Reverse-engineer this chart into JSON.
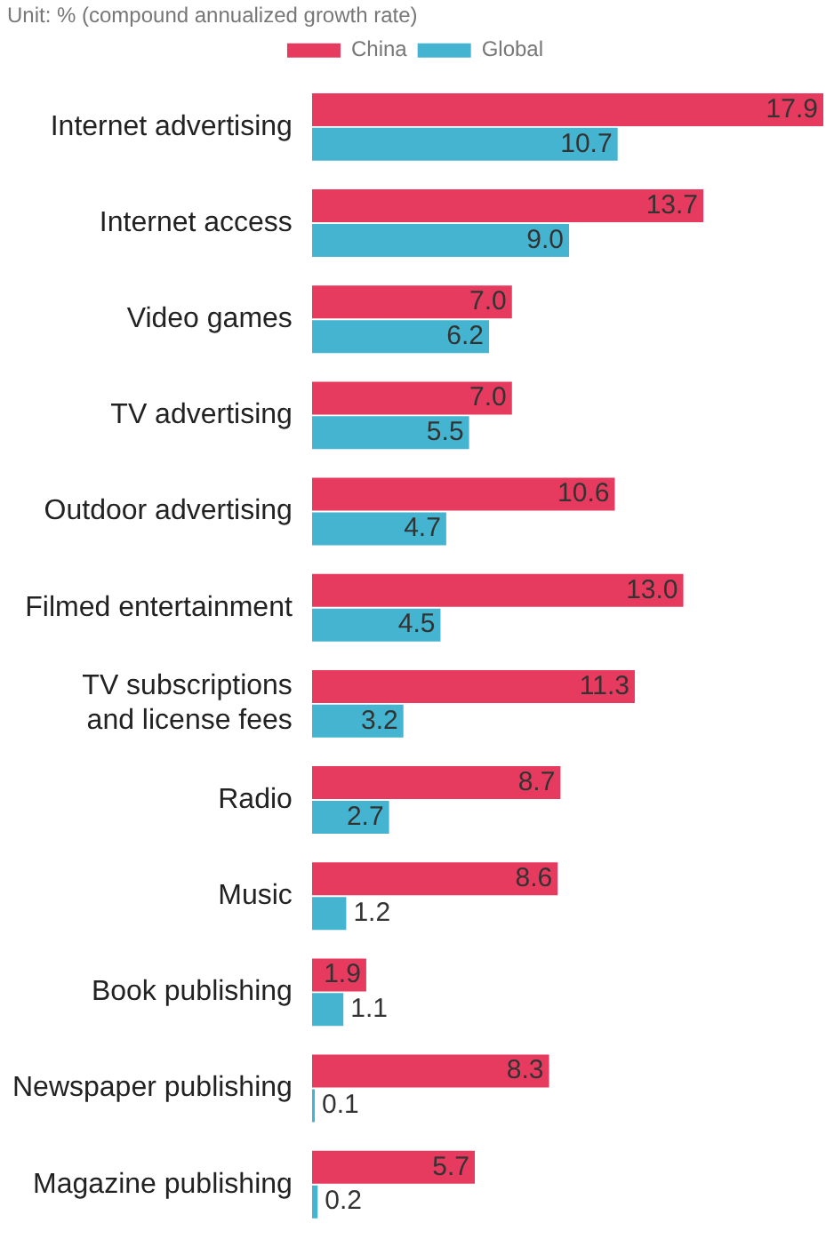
{
  "chart_data": {
    "type": "bar",
    "orientation": "horizontal",
    "subtitle": "Unit: % (compound annualized growth rate)",
    "categories": [
      "Internet advertising",
      "Internet access",
      "Video games",
      "TV advertising",
      "Outdoor advertising",
      "Filmed entertainment",
      "TV subscriptions and license fees",
      "Radio",
      "Music",
      "Book publishing",
      "Newspaper publishing",
      "Magazine publishing"
    ],
    "series": [
      {
        "name": "China",
        "color": "#e63a5e",
        "values": [
          17.9,
          13.7,
          7.0,
          7.0,
          10.6,
          13.0,
          11.3,
          8.7,
          8.6,
          1.9,
          8.3,
          5.7
        ],
        "value_labels": [
          "17.9",
          "13.7",
          "7.0",
          "7.0",
          "10.6",
          "13.0",
          "11.3",
          "8.7",
          "8.6",
          "1.9",
          "8.3",
          "5.7"
        ]
      },
      {
        "name": "Global",
        "color": "#45b4d0",
        "values": [
          10.7,
          9.0,
          6.2,
          5.5,
          4.7,
          4.5,
          3.2,
          2.7,
          1.2,
          1.1,
          0.1,
          0.2
        ],
        "value_labels": [
          "10.7",
          "9.0",
          "6.2",
          "5.5",
          "4.7",
          "4.5",
          "3.2",
          "2.7",
          "1.2",
          "1.1",
          "0.1",
          "0.2"
        ]
      }
    ],
    "legend": "top"
  }
}
